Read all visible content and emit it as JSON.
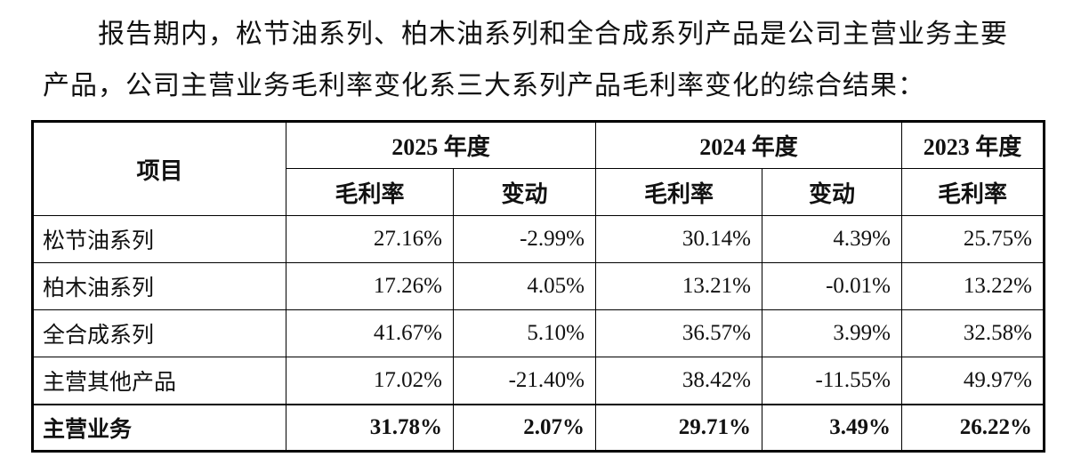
{
  "paragraph": {
    "lines": [
      "报告期内，松节油系列、柏木油系列和全合成系列产品是公司主营业务主要",
      "产品，公司主营业务毛利率变化系三大系列产品毛利率变化的综合结果："
    ]
  },
  "table": {
    "header": {
      "item": "项目",
      "years": [
        "2025 年度",
        "2024 年度",
        "2023 年度"
      ],
      "subheaders": [
        "毛利率",
        "变动",
        "毛利率",
        "变动",
        "毛利率"
      ]
    },
    "rows": [
      [
        "松节油系列",
        "27.16%",
        "-2.99%",
        "30.14%",
        "4.39%",
        "25.75%"
      ],
      [
        "柏木油系列",
        "17.26%",
        "4.05%",
        "13.21%",
        "-0.01%",
        "13.22%"
      ],
      [
        "全合成系列",
        "41.67%",
        "5.10%",
        "36.57%",
        "3.99%",
        "32.58%"
      ],
      [
        "主营其他产品",
        "17.02%",
        "-21.40%",
        "38.42%",
        "-11.55%",
        "49.97%"
      ],
      [
        "主营业务",
        "31.78%",
        "2.07%",
        "29.71%",
        "3.49%",
        "26.22%"
      ]
    ]
  }
}
